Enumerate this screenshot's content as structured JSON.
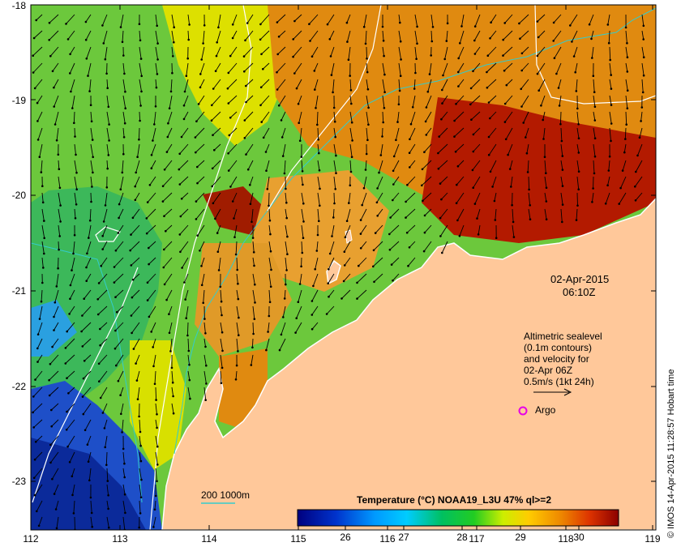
{
  "map": {
    "lon_ticks": [
      "112",
      "113",
      "114",
      "115",
      "116",
      "117",
      "118",
      "119"
    ],
    "lat_ticks": [
      "-18",
      "-19",
      "-20",
      "-21",
      "-22",
      "-23"
    ],
    "lon_range": [
      112,
      119
    ],
    "lat_range": [
      -23.55,
      -18.0
    ]
  },
  "date_label": {
    "date": "02-Apr-2015",
    "time": "06:10Z"
  },
  "altimetry_legend": {
    "lines": [
      "Altimetric sealevel",
      "(0.1m contours)",
      "and velocity for",
      "02-Apr 06Z",
      "0.5m/s (1kt 24h)"
    ]
  },
  "argo_legend": {
    "label": "Argo",
    "marker_color": "#e600e6"
  },
  "depth_legend": {
    "label": "200  1000m",
    "line_color": "#33cccc"
  },
  "colorbar": {
    "title": "Temperature (°C) NOAA19_L3U 47% ql>=2",
    "ticks": [
      "26",
      "27",
      "28",
      "29",
      "30"
    ],
    "range": [
      25.2,
      30.7
    ]
  },
  "credit": "© IMOS 14-Apr-2015 11:28:57 Hobart time",
  "colors": {
    "land": "#ffc89a",
    "background": "#ffffff",
    "sea_level_contour": "#ffffff",
    "bathymetry": "#33cccc",
    "argo": "#e600e6"
  }
}
